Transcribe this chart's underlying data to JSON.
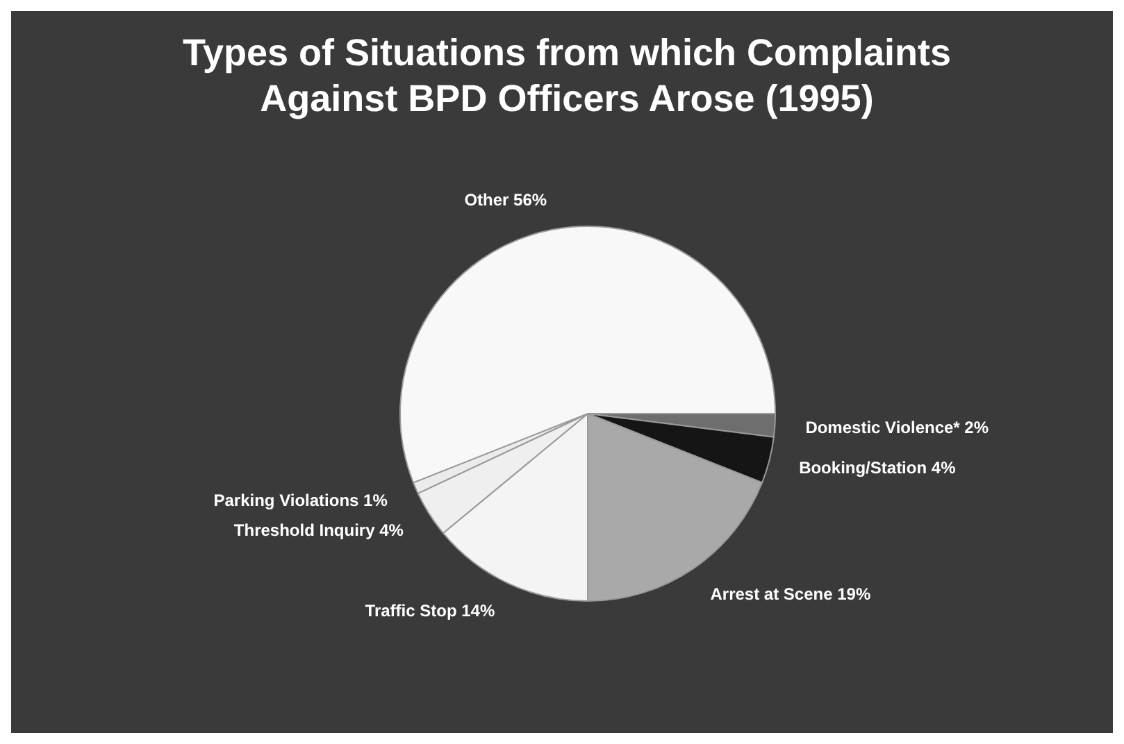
{
  "chart_data": {
    "type": "pie",
    "title": "Types of Situations from which Complaints Against BPD Officers Arose (1995)",
    "categories": [
      "Domestic Violence*",
      "Booking/Station",
      "Arrest at Scene",
      "Traffic Stop",
      "Threshold Inquiry",
      "Parking Violations",
      "Other"
    ],
    "values": [
      2,
      4,
      19,
      14,
      4,
      1,
      56
    ],
    "value_labels": [
      "2%",
      "4%",
      "19%",
      "14%",
      "4%",
      "1%",
      "56%"
    ],
    "colors": [
      "#6e6e6e",
      "#151515",
      "#a9a9a9",
      "#f4f4f4",
      "#efefef",
      "#ebebeb",
      "#f8f8f8"
    ],
    "legend": false
  }
}
